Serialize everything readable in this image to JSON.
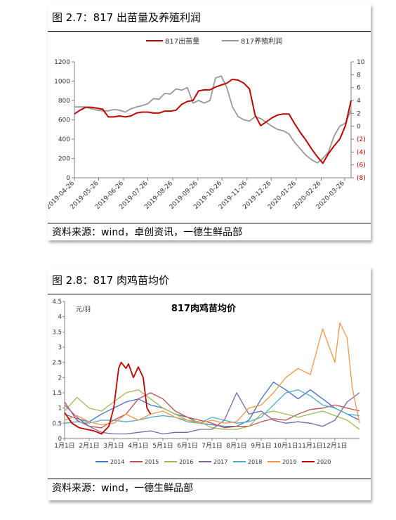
{
  "figure1": {
    "caption": "图 2.7：817 出苗量及养殖利润",
    "source": "资料来源：wind，卓创资讯，一德生鲜品部",
    "chart_data": {
      "type": "line",
      "title": "",
      "x": [
        "2019-04-26",
        "2019-05-03",
        "2019-05-10",
        "2019-05-17",
        "2019-05-24",
        "2019-05-31",
        "2019-06-07",
        "2019-06-14",
        "2019-06-21",
        "2019-06-28",
        "2019-07-05",
        "2019-07-12",
        "2019-07-19",
        "2019-07-26",
        "2019-08-02",
        "2019-08-09",
        "2019-08-16",
        "2019-08-23",
        "2019-08-30",
        "2019-09-06",
        "2019-09-13",
        "2019-09-20",
        "2019-09-27",
        "2019-10-04",
        "2019-10-11",
        "2019-10-18",
        "2019-10-25",
        "2019-11-01",
        "2019-11-08",
        "2019-11-15",
        "2019-11-22",
        "2019-11-29",
        "2019-12-06",
        "2019-12-13",
        "2019-12-20",
        "2019-12-27",
        "2020-01-03",
        "2020-01-10",
        "2020-01-17",
        "2020-01-24",
        "2020-01-31",
        "2020-02-07",
        "2020-02-14",
        "2020-02-21",
        "2020-02-28",
        "2020-03-06",
        "2020-03-13",
        "2020-03-20",
        "2020-03-27",
        "2020-04-03"
      ],
      "xticks": [
        "2019-04-26",
        "2019-05-26",
        "2019-06-26",
        "2019-07-26",
        "2019-08-26",
        "2019-09-26",
        "2019-10-26",
        "2019-11-26",
        "2019-12-26",
        "2020-01-26",
        "2020-02-26",
        "2020-03-26"
      ],
      "series": [
        {
          "name": "817出苗量",
          "axis": "left",
          "color": "#c00000",
          "values": [
            660,
            700,
            730,
            730,
            720,
            710,
            630,
            630,
            640,
            630,
            640,
            670,
            680,
            680,
            670,
            670,
            690,
            690,
            700,
            760,
            790,
            800,
            900,
            910,
            910,
            940,
            960,
            980,
            1020,
            1010,
            980,
            920,
            650,
            540,
            580,
            620,
            650,
            660,
            660,
            560,
            470,
            390,
            300,
            220,
            150,
            250,
            330,
            400,
            540,
            800
          ]
        },
        {
          "name": "817养殖利润",
          "axis": "right",
          "color": "#999999",
          "values": [
            3.0,
            3.0,
            3.0,
            2.7,
            2.5,
            2.4,
            2.4,
            2.6,
            2.5,
            2.2,
            2.7,
            3.0,
            3.2,
            3.5,
            4.3,
            4.2,
            5.1,
            5.0,
            5.8,
            5.6,
            6.0,
            3.6,
            4.0,
            3.6,
            4.0,
            7.5,
            7.8,
            6.0,
            3.0,
            1.5,
            1.0,
            0.8,
            1.5,
            1.2,
            0.6,
            0.0,
            -0.5,
            -0.7,
            -1.2,
            -2.5,
            -3.5,
            -4.5,
            -5.2,
            -5.7,
            -5.0,
            -4.0,
            -1.5,
            0.0,
            0.5,
            2.5
          ]
        }
      ],
      "ylim_left": [
        0,
        1200
      ],
      "yticks_left": [
        "0",
        "200",
        "400",
        "600",
        "800",
        "1000",
        "1200"
      ],
      "ylim_right": [
        -8,
        10
      ],
      "yticks_right": [
        "10",
        "8",
        "6",
        "4",
        "2",
        "0",
        "(2)",
        "(4)",
        "(6)",
        "(8)"
      ],
      "legend": "top",
      "grid": false
    }
  },
  "figure2": {
    "caption": "图 2.8：817 肉鸡苗均价",
    "source": "资料来源：wind，一德生鲜品部",
    "chart_data": {
      "type": "line",
      "title": "817肉鸡苗均价",
      "ylabel": "元/羽",
      "ylim": [
        0,
        4.5
      ],
      "yticks": [
        "0",
        "0.5",
        "1",
        "1.5",
        "2",
        "2.5",
        "3",
        "3.5",
        "4",
        "4.5"
      ],
      "xticks": [
        "1月1日",
        "2月1日",
        "3月1日",
        "4月1日",
        "5月1日",
        "6月1日",
        "7月1日",
        "8月1日",
        "9月1日",
        "10月1日",
        "11月1日",
        "12月1日"
      ],
      "xlim": [
        0,
        12
      ],
      "legend": "bottom",
      "grid": false,
      "series": [
        {
          "name": "2014",
          "color": "#4472c4",
          "values": [
            [
              0,
              0.8
            ],
            [
              0.5,
              0.65
            ],
            [
              1,
              0.55
            ],
            [
              1.5,
              0.8
            ],
            [
              2,
              1.0
            ],
            [
              2.5,
              1.2
            ],
            [
              3,
              1.3
            ],
            [
              3.5,
              1.1
            ],
            [
              4,
              1.0
            ],
            [
              4.5,
              0.8
            ],
            [
              5,
              0.7
            ],
            [
              5.5,
              0.5
            ],
            [
              6,
              0.45
            ],
            [
              6.5,
              0.4
            ],
            [
              7,
              0.4
            ],
            [
              7.5,
              0.6
            ],
            [
              8,
              1.3
            ],
            [
              8.5,
              1.85
            ],
            [
              9,
              1.6
            ],
            [
              9.5,
              1.3
            ],
            [
              10,
              1.6
            ],
            [
              10.5,
              1.3
            ],
            [
              11,
              1.0
            ],
            [
              11.5,
              0.8
            ],
            [
              12,
              0.6
            ]
          ]
        },
        {
          "name": "2015",
          "color": "#c0504d",
          "values": [
            [
              0,
              1.2
            ],
            [
              0.5,
              0.6
            ],
            [
              1,
              0.4
            ],
            [
              1.5,
              0.35
            ],
            [
              2,
              0.6
            ],
            [
              2.5,
              0.8
            ],
            [
              3,
              1.3
            ],
            [
              3.5,
              1.5
            ],
            [
              4,
              1.3
            ],
            [
              4.5,
              0.9
            ],
            [
              5,
              0.7
            ],
            [
              5.5,
              0.6
            ],
            [
              6,
              0.5
            ],
            [
              6.5,
              0.35
            ],
            [
              7,
              0.4
            ],
            [
              7.5,
              0.4
            ],
            [
              8,
              0.55
            ],
            [
              8.5,
              0.65
            ],
            [
              9,
              0.6
            ],
            [
              9.5,
              0.8
            ],
            [
              10,
              0.95
            ],
            [
              10.5,
              1.0
            ],
            [
              11,
              1.1
            ],
            [
              11.5,
              1.0
            ],
            [
              12,
              0.9
            ]
          ]
        },
        {
          "name": "2016",
          "color": "#9bbb59",
          "values": [
            [
              0,
              0.9
            ],
            [
              0.5,
              1.35
            ],
            [
              1,
              1.0
            ],
            [
              1.5,
              0.9
            ],
            [
              2,
              1.2
            ],
            [
              2.5,
              1.5
            ],
            [
              3,
              1.6
            ],
            [
              3.5,
              1.3
            ],
            [
              4,
              1.0
            ],
            [
              4.5,
              0.8
            ],
            [
              5,
              0.6
            ],
            [
              5.5,
              0.55
            ],
            [
              6,
              0.35
            ],
            [
              6.5,
              0.3
            ],
            [
              7,
              0.3
            ],
            [
              7.5,
              0.4
            ],
            [
              8,
              0.8
            ],
            [
              8.5,
              0.9
            ],
            [
              9,
              0.8
            ],
            [
              9.5,
              0.7
            ],
            [
              10,
              0.8
            ],
            [
              10.5,
              0.9
            ],
            [
              11,
              0.75
            ],
            [
              11.5,
              0.6
            ],
            [
              12,
              0.3
            ]
          ]
        },
        {
          "name": "2017",
          "color": "#8064a2",
          "values": [
            [
              0,
              1.1
            ],
            [
              0.5,
              0.7
            ],
            [
              1,
              0.4
            ],
            [
              1.5,
              0.2
            ],
            [
              2,
              0.15
            ],
            [
              2.5,
              0.15
            ],
            [
              3,
              0.2
            ],
            [
              3.5,
              0.25
            ],
            [
              4,
              0.15
            ],
            [
              4.5,
              0.2
            ],
            [
              5,
              0.2
            ],
            [
              5.5,
              0.3
            ],
            [
              6,
              0.3
            ],
            [
              6.5,
              0.6
            ],
            [
              7,
              1.5
            ],
            [
              7.5,
              0.8
            ],
            [
              8,
              0.9
            ],
            [
              8.5,
              0.6
            ],
            [
              9,
              0.5
            ],
            [
              9.5,
              0.55
            ],
            [
              10,
              0.5
            ],
            [
              10.5,
              0.4
            ],
            [
              11,
              0.6
            ],
            [
              11.5,
              1.2
            ],
            [
              12,
              1.5
            ]
          ]
        },
        {
          "name": "2018",
          "color": "#4bacc6",
          "values": [
            [
              0,
              0.5
            ],
            [
              0.5,
              0.55
            ],
            [
              1,
              0.5
            ],
            [
              1.5,
              0.6
            ],
            [
              2,
              0.6
            ],
            [
              2.5,
              0.55
            ],
            [
              3,
              0.6
            ],
            [
              3.5,
              0.7
            ],
            [
              4,
              0.75
            ],
            [
              4.5,
              0.7
            ],
            [
              5,
              0.55
            ],
            [
              5.5,
              0.5
            ],
            [
              6,
              0.7
            ],
            [
              6.5,
              0.6
            ],
            [
              7,
              0.5
            ],
            [
              7.5,
              0.55
            ],
            [
              8,
              0.7
            ],
            [
              8.5,
              1.1
            ],
            [
              9,
              1.5
            ],
            [
              9.5,
              1.6
            ],
            [
              10,
              1.4
            ],
            [
              10.5,
              1.1
            ],
            [
              11,
              1.0
            ],
            [
              11.5,
              0.8
            ],
            [
              12,
              0.75
            ]
          ]
        },
        {
          "name": "2019",
          "color": "#f79646",
          "values": [
            [
              0,
              0.6
            ],
            [
              0.5,
              0.75
            ],
            [
              1,
              0.55
            ],
            [
              1.5,
              0.45
            ],
            [
              2,
              0.5
            ],
            [
              2.5,
              0.8
            ],
            [
              3,
              0.6
            ],
            [
              3.5,
              0.8
            ],
            [
              4,
              0.9
            ],
            [
              4.5,
              0.7
            ],
            [
              5,
              0.6
            ],
            [
              5.5,
              0.5
            ],
            [
              6,
              0.6
            ],
            [
              6.5,
              0.5
            ],
            [
              7,
              0.55
            ],
            [
              7.5,
              1.0
            ],
            [
              8,
              1.1
            ],
            [
              8.5,
              1.5
            ],
            [
              9,
              2.0
            ],
            [
              9.5,
              2.3
            ],
            [
              10,
              2.1
            ],
            [
              10.5,
              3.6
            ],
            [
              11,
              2.5
            ],
            [
              11.2,
              3.8
            ],
            [
              11.5,
              3.3
            ],
            [
              11.7,
              1.7
            ],
            [
              12,
              0.5
            ]
          ]
        },
        {
          "name": "2020",
          "color": "#c00000",
          "values": [
            [
              0,
              0.85
            ],
            [
              0.3,
              0.5
            ],
            [
              0.6,
              0.35
            ],
            [
              0.9,
              0.3
            ],
            [
              1.2,
              0.25
            ],
            [
              1.5,
              0.15
            ],
            [
              1.8,
              0.4
            ],
            [
              2.0,
              1.0
            ],
            [
              2.2,
              2.3
            ],
            [
              2.3,
              2.5
            ],
            [
              2.5,
              2.3
            ],
            [
              2.6,
              2.45
            ],
            [
              2.8,
              2.0
            ],
            [
              3.0,
              2.35
            ],
            [
              3.2,
              2.0
            ],
            [
              3.35,
              1.0
            ],
            [
              3.5,
              0.8
            ]
          ]
        }
      ]
    }
  }
}
